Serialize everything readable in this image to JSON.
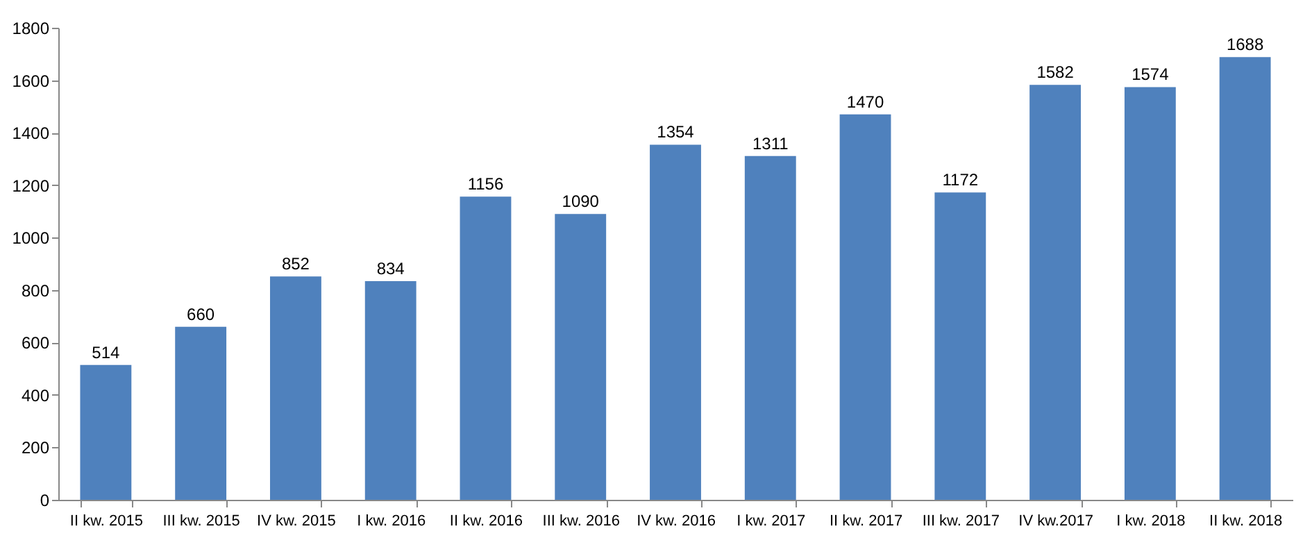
{
  "chart_data": {
    "type": "bar",
    "categories": [
      "II kw. 2015",
      "III kw. 2015",
      "IV kw. 2015",
      "I kw. 2016",
      "II kw. 2016",
      "III kw. 2016",
      "IV kw. 2016",
      "I kw. 2017",
      "II kw. 2017",
      "III kw. 2017",
      "IV kw.2017",
      "I kw. 2018",
      "II kw. 2018"
    ],
    "values": [
      514,
      660,
      852,
      834,
      1156,
      1090,
      1354,
      1311,
      1470,
      1172,
      1582,
      1574,
      1688
    ],
    "color": "#4f81bd",
    "ylim": [
      0,
      1800
    ],
    "yticks": [
      0,
      200,
      400,
      600,
      800,
      1000,
      1200,
      1400,
      1600,
      1800
    ],
    "grid": false,
    "data_labels": true
  }
}
